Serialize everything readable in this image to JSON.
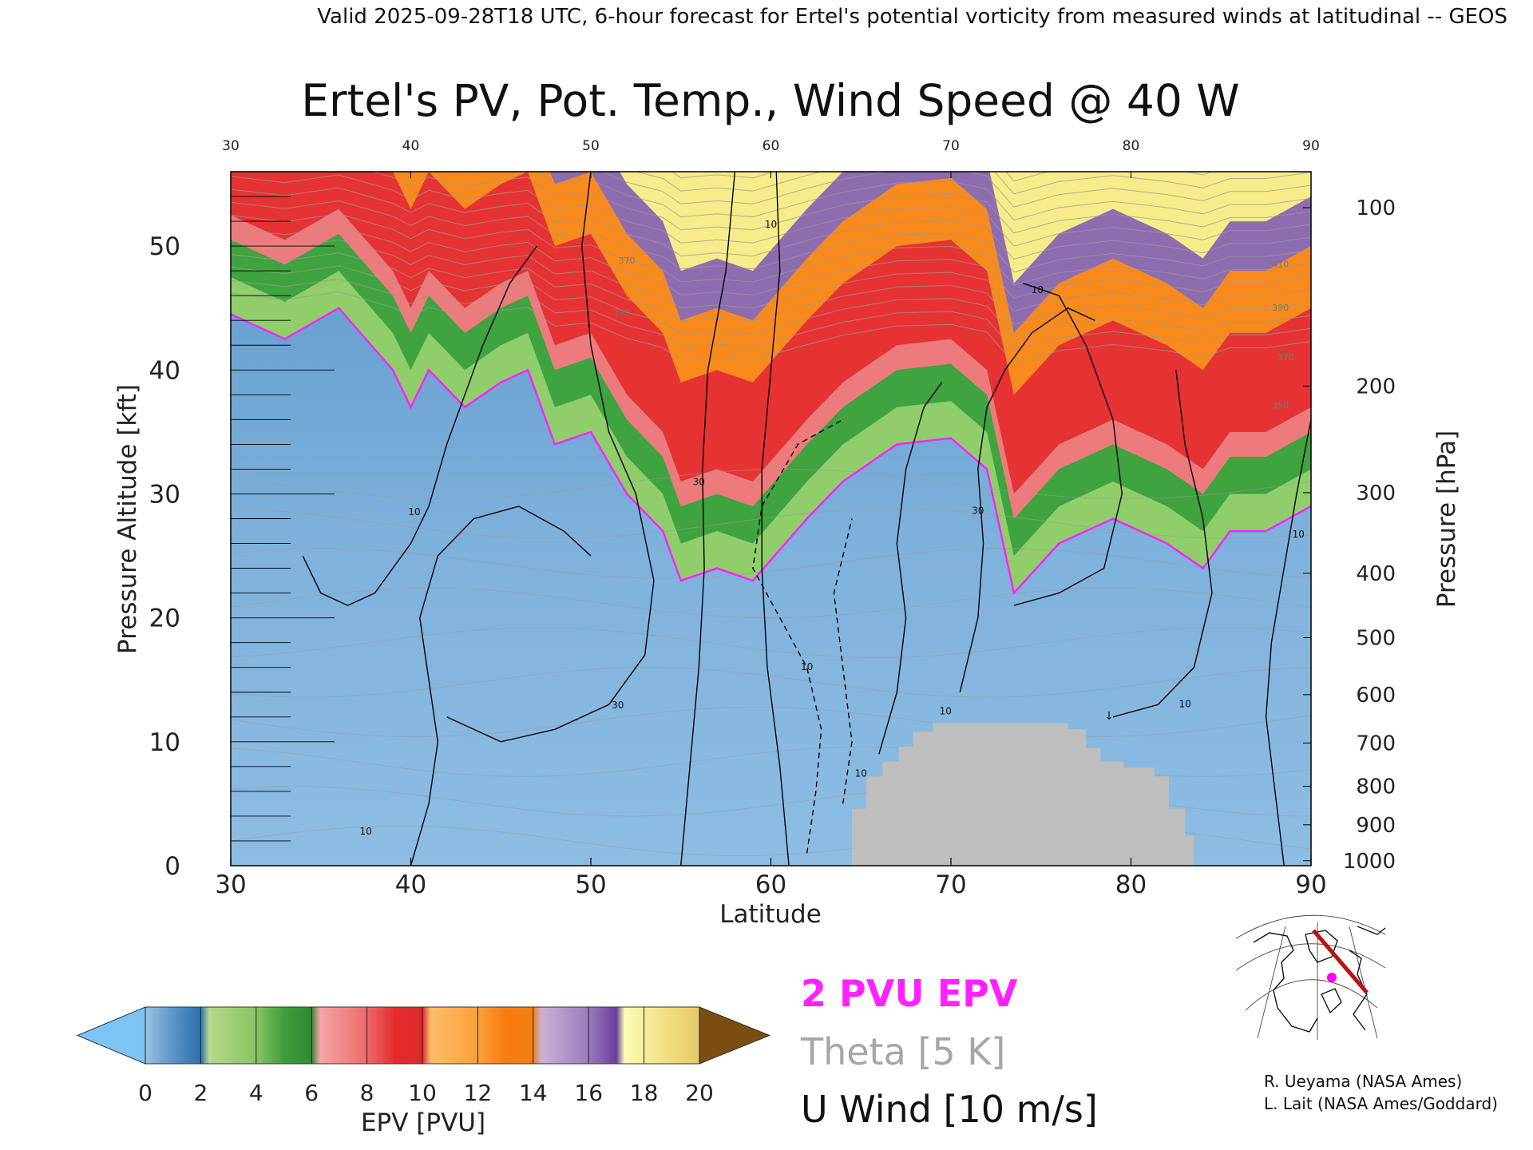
{
  "header": {
    "valid_line": "Valid 2025-09-28T18 UTC, 6-hour forecast for Ertel's potential vorticity from measured winds at latitudinal -- GEOS"
  },
  "chart_data": {
    "type": "heatmap",
    "title": "Ertel's PV, Pot. Temp., Wind Speed @ 40 W",
    "xlabel": "Latitude",
    "ylabel_left": "Pressure Altitude [kft]",
    "ylabel_right": "Pressure [hPa]",
    "xlim": [
      30,
      90
    ],
    "ylim": [
      0,
      56
    ],
    "x_ticks": [
      30,
      40,
      50,
      60,
      70,
      80,
      90
    ],
    "top_x_ticks": [
      30,
      40,
      50,
      60,
      70,
      80,
      90
    ],
    "y_ticks_kft": [
      0,
      10,
      20,
      30,
      40,
      50
    ],
    "pressure_ticks": [
      {
        "hpa": 1000,
        "kft": 0.4
      },
      {
        "hpa": 900,
        "kft": 3.3
      },
      {
        "hpa": 800,
        "kft": 6.4
      },
      {
        "hpa": 700,
        "kft": 9.9
      },
      {
        "hpa": 600,
        "kft": 13.8
      },
      {
        "hpa": 500,
        "kft": 18.4
      },
      {
        "hpa": 400,
        "kft": 23.6
      },
      {
        "hpa": 300,
        "kft": 30.1
      },
      {
        "hpa": 200,
        "kft": 38.7
      },
      {
        "hpa": 100,
        "kft": 53.1
      }
    ],
    "tropopause_2pvu_kft": [
      {
        "lat": 30,
        "kft": 44.5
      },
      {
        "lat": 33,
        "kft": 42.5
      },
      {
        "lat": 36,
        "kft": 45
      },
      {
        "lat": 39,
        "kft": 40
      },
      {
        "lat": 40,
        "kft": 37
      },
      {
        "lat": 41,
        "kft": 40
      },
      {
        "lat": 43,
        "kft": 37
      },
      {
        "lat": 45,
        "kft": 39
      },
      {
        "lat": 46.5,
        "kft": 40
      },
      {
        "lat": 48,
        "kft": 34
      },
      {
        "lat": 50,
        "kft": 35
      },
      {
        "lat": 52,
        "kft": 30
      },
      {
        "lat": 54,
        "kft": 27
      },
      {
        "lat": 55,
        "kft": 23
      },
      {
        "lat": 57,
        "kft": 24
      },
      {
        "lat": 59,
        "kft": 23
      },
      {
        "lat": 62,
        "kft": 28
      },
      {
        "lat": 64,
        "kft": 31
      },
      {
        "lat": 67,
        "kft": 34
      },
      {
        "lat": 70,
        "kft": 34.5
      },
      {
        "lat": 72,
        "kft": 32
      },
      {
        "lat": 73.5,
        "kft": 22
      },
      {
        "lat": 76,
        "kft": 26
      },
      {
        "lat": 79,
        "kft": 28
      },
      {
        "lat": 82,
        "kft": 26
      },
      {
        "lat": 84,
        "kft": 24
      },
      {
        "lat": 85.5,
        "kft": 27
      },
      {
        "lat": 87.5,
        "kft": 27
      },
      {
        "lat": 90,
        "kft": 29
      }
    ],
    "pv_layers_kft": [
      {
        "lower_pvu": 2,
        "upper_pvu": 4,
        "color": "#8fce6a",
        "depth_kft": 3
      },
      {
        "lower_pvu": 4,
        "upper_pvu": 6,
        "color": "#3fa33f",
        "depth_kft": 3
      },
      {
        "lower_pvu": 6,
        "upper_pvu": 8,
        "color": "#ee7b7b",
        "depth_kft": 2
      },
      {
        "lower_pvu": 8,
        "upper_pvu": 11,
        "color": "#e63232",
        "depth_kft": 8
      },
      {
        "lower_pvu": 11,
        "upper_pvu": 14,
        "color": "#f98a1c",
        "depth_kft": 5
      },
      {
        "lower_pvu": 14,
        "upper_pvu": 17,
        "color": "#8e6cb0",
        "depth_kft": 4
      },
      {
        "lower_pvu": 17,
        "upper_pvu": 20,
        "color": "#f7ec8a",
        "depth_kft": 2
      }
    ],
    "terrain_kft": [
      {
        "lat": 64.5,
        "kft": 4.6
      },
      {
        "lat": 65.3,
        "kft": 7.2
      },
      {
        "lat": 66.2,
        "kft": 8.4
      },
      {
        "lat": 67.1,
        "kft": 9.6
      },
      {
        "lat": 67.9,
        "kft": 10.8
      },
      {
        "lat": 69,
        "kft": 11.5
      },
      {
        "lat": 75.5,
        "kft": 11.5
      },
      {
        "lat": 76.5,
        "kft": 11
      },
      {
        "lat": 77.5,
        "kft": 9.5
      },
      {
        "lat": 78.3,
        "kft": 8.4
      },
      {
        "lat": 79.6,
        "kft": 7.9
      },
      {
        "lat": 81.3,
        "kft": 7.2
      },
      {
        "lat": 82.1,
        "kft": 4.6
      },
      {
        "lat": 83,
        "kft": 2.4
      },
      {
        "lat": 83.5,
        "kft": 1.4
      }
    ],
    "u_wind_contours": [
      {
        "label": "10",
        "label_lat": 37.5,
        "label_kft": 2.5,
        "dashed": false,
        "points": [
          [
            34,
            25
          ],
          [
            35,
            22
          ],
          [
            36.5,
            21
          ],
          [
            38,
            22
          ],
          [
            40,
            26
          ],
          [
            41,
            29
          ],
          [
            42,
            34
          ],
          [
            43,
            38
          ],
          [
            44,
            42
          ],
          [
            45.5,
            47
          ],
          [
            47,
            50
          ]
        ]
      },
      {
        "label": "10",
        "label_lat": 40.2,
        "label_kft": 28.3,
        "dashed": false,
        "points": [
          [
            40,
            0
          ],
          [
            41,
            5
          ],
          [
            41.5,
            10
          ],
          [
            41,
            15
          ],
          [
            40.5,
            20
          ],
          [
            41.5,
            25
          ],
          [
            43.5,
            28
          ],
          [
            46,
            29
          ],
          [
            48.5,
            27
          ],
          [
            50,
            25
          ]
        ]
      },
      {
        "label": "30",
        "label_lat": 51.5,
        "label_kft": 12.7,
        "dashed": false,
        "points": [
          [
            42,
            12
          ],
          [
            45,
            10
          ],
          [
            48,
            11
          ],
          [
            51,
            13
          ],
          [
            53,
            17
          ],
          [
            53.5,
            23
          ],
          [
            52.5,
            30
          ],
          [
            51,
            35
          ],
          [
            50,
            42
          ],
          [
            49.5,
            50
          ],
          [
            50,
            56
          ]
        ]
      },
      {
        "label": "30",
        "label_lat": 56,
        "label_kft": 30.7,
        "dashed": false,
        "points": [
          [
            55,
            0
          ],
          [
            55.5,
            8
          ],
          [
            56,
            16
          ],
          [
            56.3,
            24
          ],
          [
            56.2,
            32
          ],
          [
            56.5,
            40
          ],
          [
            57.5,
            48
          ],
          [
            58,
            56
          ]
        ]
      },
      {
        "label": "10",
        "label_lat": 60,
        "label_kft": 51.5,
        "dashed": false,
        "points": [
          [
            61,
            0
          ],
          [
            60.5,
            8
          ],
          [
            59.8,
            16
          ],
          [
            59.5,
            24
          ],
          [
            59.5,
            32
          ],
          [
            60,
            40
          ],
          [
            60.5,
            48
          ],
          [
            60.3,
            56
          ]
        ]
      },
      {
        "label": "10",
        "label_lat": 62,
        "label_kft": 15.8,
        "dashed": true,
        "points": [
          [
            62,
            1
          ],
          [
            62.5,
            6
          ],
          [
            62.8,
            11
          ],
          [
            62,
            16
          ],
          [
            60.5,
            20
          ],
          [
            59,
            24
          ],
          [
            59.5,
            29
          ],
          [
            61.5,
            34
          ],
          [
            64,
            36
          ]
        ]
      },
      {
        "label": "10",
        "label_lat": 65,
        "label_kft": 7.2,
        "dashed": true,
        "points": [
          [
            64,
            5
          ],
          [
            64.5,
            10
          ],
          [
            64,
            16
          ],
          [
            63.5,
            22
          ],
          [
            64.5,
            28
          ]
        ]
      },
      {
        "label": "10",
        "label_lat": 69.7,
        "label_kft": 12.2,
        "dashed": false,
        "points": [
          [
            66,
            9
          ],
          [
            67,
            14
          ],
          [
            67.5,
            20
          ],
          [
            67,
            26
          ],
          [
            67.5,
            32
          ],
          [
            68.5,
            37
          ],
          [
            69.5,
            39
          ]
        ]
      },
      {
        "label": "30",
        "label_lat": 71.5,
        "label_kft": 28.4,
        "dashed": false,
        "points": [
          [
            70.5,
            14
          ],
          [
            71.5,
            20
          ],
          [
            71.8,
            26
          ],
          [
            71.5,
            32
          ],
          [
            72,
            37
          ],
          [
            73,
            40
          ],
          [
            74.5,
            43
          ],
          [
            76.5,
            45
          ],
          [
            78,
            44
          ]
        ]
      },
      {
        "label": "10",
        "label_lat": 74.8,
        "label_kft": 46.2,
        "dashed": false,
        "points": [
          [
            73.5,
            21
          ],
          [
            76,
            22
          ],
          [
            78.5,
            24
          ],
          [
            79.5,
            30
          ],
          [
            79,
            36
          ],
          [
            77.5,
            42
          ],
          [
            76,
            46
          ],
          [
            74,
            47
          ]
        ]
      },
      {
        "label": "10",
        "label_lat": 83,
        "label_kft": 12.8,
        "dashed": false,
        "points": [
          [
            79,
            12
          ],
          [
            81.5,
            13
          ],
          [
            83.5,
            16
          ],
          [
            84.5,
            22
          ],
          [
            84,
            28
          ],
          [
            83,
            34
          ],
          [
            82.5,
            40
          ]
        ]
      },
      {
        "label": "10",
        "label_lat": 89.3,
        "label_kft": 26.5,
        "dashed": false,
        "points": [
          [
            88.5,
            0
          ],
          [
            88,
            6
          ],
          [
            87.5,
            12
          ],
          [
            87.8,
            18
          ],
          [
            88.5,
            24
          ],
          [
            89.2,
            30
          ],
          [
            90,
            36
          ]
        ]
      }
    ],
    "theta_labels": [
      {
        "text": "390",
        "lat": 51.7,
        "kft": 44.4
      },
      {
        "text": "370",
        "lat": 52,
        "kft": 48.6
      },
      {
        "text": "410",
        "lat": 88.3,
        "kft": 48.3
      },
      {
        "text": "390",
        "lat": 88.3,
        "kft": 44.8
      },
      {
        "text": "370",
        "lat": 88.6,
        "kft": 40.8
      },
      {
        "text": "350",
        "lat": 88.3,
        "kft": 36.9
      }
    ],
    "colorbar": {
      "label": "EPV [PVU]",
      "ticks": [
        0,
        2,
        4,
        6,
        8,
        10,
        12,
        14,
        16,
        18,
        20
      ],
      "min": 0,
      "max": 20,
      "under_color": "#7cc4f4",
      "over_color": "#7a4e10",
      "stops": [
        {
          "pvu": 0,
          "color": "#9ac3e2"
        },
        {
          "pvu": 1,
          "color": "#5b95c8"
        },
        {
          "pvu": 2,
          "color": "#2d6fae"
        },
        {
          "pvu": 2.3,
          "color": "#b8d88c"
        },
        {
          "pvu": 4,
          "color": "#88c563"
        },
        {
          "pvu": 5,
          "color": "#3f9e3c"
        },
        {
          "pvu": 6,
          "color": "#2f8a31"
        },
        {
          "pvu": 6.3,
          "color": "#f4a5a5"
        },
        {
          "pvu": 8,
          "color": "#ee6b6b"
        },
        {
          "pvu": 9,
          "color": "#e62b2b"
        },
        {
          "pvu": 10,
          "color": "#dc2b2b"
        },
        {
          "pvu": 10.3,
          "color": "#fdbd6b"
        },
        {
          "pvu": 12,
          "color": "#fca03a"
        },
        {
          "pvu": 13,
          "color": "#f87c10"
        },
        {
          "pvu": 14,
          "color": "#f47f12"
        },
        {
          "pvu": 14.3,
          "color": "#cab2d6"
        },
        {
          "pvu": 16,
          "color": "#9b7bbd"
        },
        {
          "pvu": 17,
          "color": "#6a3d9a"
        },
        {
          "pvu": 17.3,
          "color": "#fdfcb4"
        },
        {
          "pvu": 19,
          "color": "#f0dc7c"
        },
        {
          "pvu": 20,
          "color": "#e6c96a"
        }
      ]
    },
    "legend": {
      "epv_label": "2 PVU EPV",
      "theta_label": "Theta [5 K]",
      "wind_label": "U Wind [10 m/s]"
    }
  },
  "colors": {
    "tropopause": "#ff22ff",
    "terrain": "#bebebe",
    "theta_lines": "#9a9a9a",
    "wind_lines": "#000000",
    "lower_field": "#6fa8d6",
    "map_track": "#bb1111",
    "map_marker": "#ff00ff"
  },
  "credits": {
    "line1": "R. Ueyama (NASA Ames)",
    "line2": "L. Lait (NASA Ames/Goddard)"
  }
}
